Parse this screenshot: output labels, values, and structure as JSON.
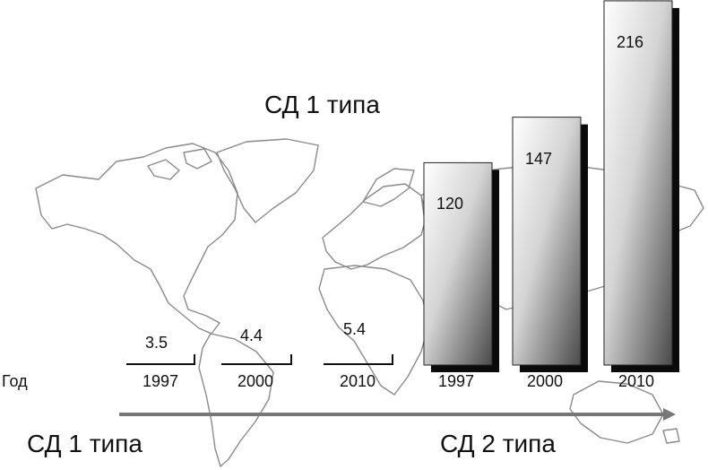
{
  "chart_data": {
    "type": "bar",
    "title": "СД 1 типа",
    "row_label": "Год",
    "footer_left": "СД 1 типа",
    "footer_right": "СД 2 типа",
    "series": [
      {
        "name": "СД 1 типа",
        "categories": [
          "1997",
          "2000",
          "2010"
        ],
        "values": [
          "3.5",
          "4.4",
          "5.4"
        ]
      },
      {
        "name": "СД 2 типа",
        "categories": [
          "1997",
          "2000",
          "2010"
        ],
        "values": [
          "120",
          "147",
          "216"
        ]
      }
    ],
    "colors": {
      "bar_light": "#ffffff",
      "bar_dark": "#4a4a4a",
      "shadow": "#0a0a0a",
      "map": "#8a8a8a",
      "arrow": "#777777"
    }
  }
}
